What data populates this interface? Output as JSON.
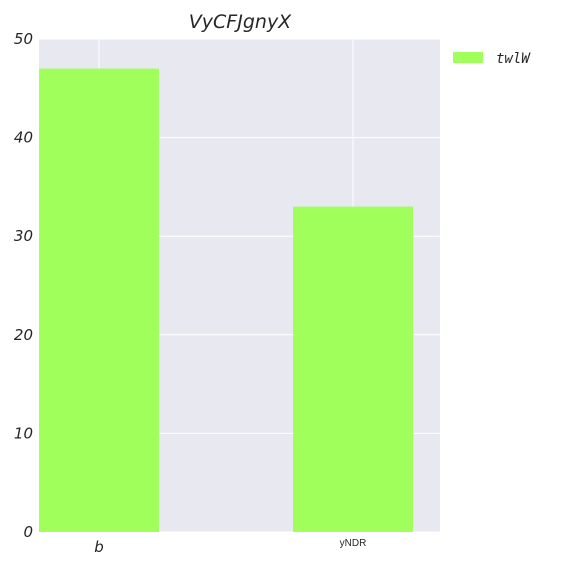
{
  "chart_data": {
    "type": "bar",
    "title": "VyCFJgnyX",
    "categories": [
      "b",
      "yNDR"
    ],
    "series": [
      {
        "name": "twlW",
        "values": [
          47,
          33
        ],
        "color": "#a0ff5a"
      }
    ],
    "ylim": [
      0,
      50
    ],
    "yticks": [
      "0",
      "10",
      "20",
      "30",
      "40",
      "50"
    ],
    "xlabel": "",
    "ylabel": "",
    "grid": true,
    "legend_position": "top-right-outside",
    "background_color": "#e8e8f1",
    "grid_color": "#ffffff"
  }
}
